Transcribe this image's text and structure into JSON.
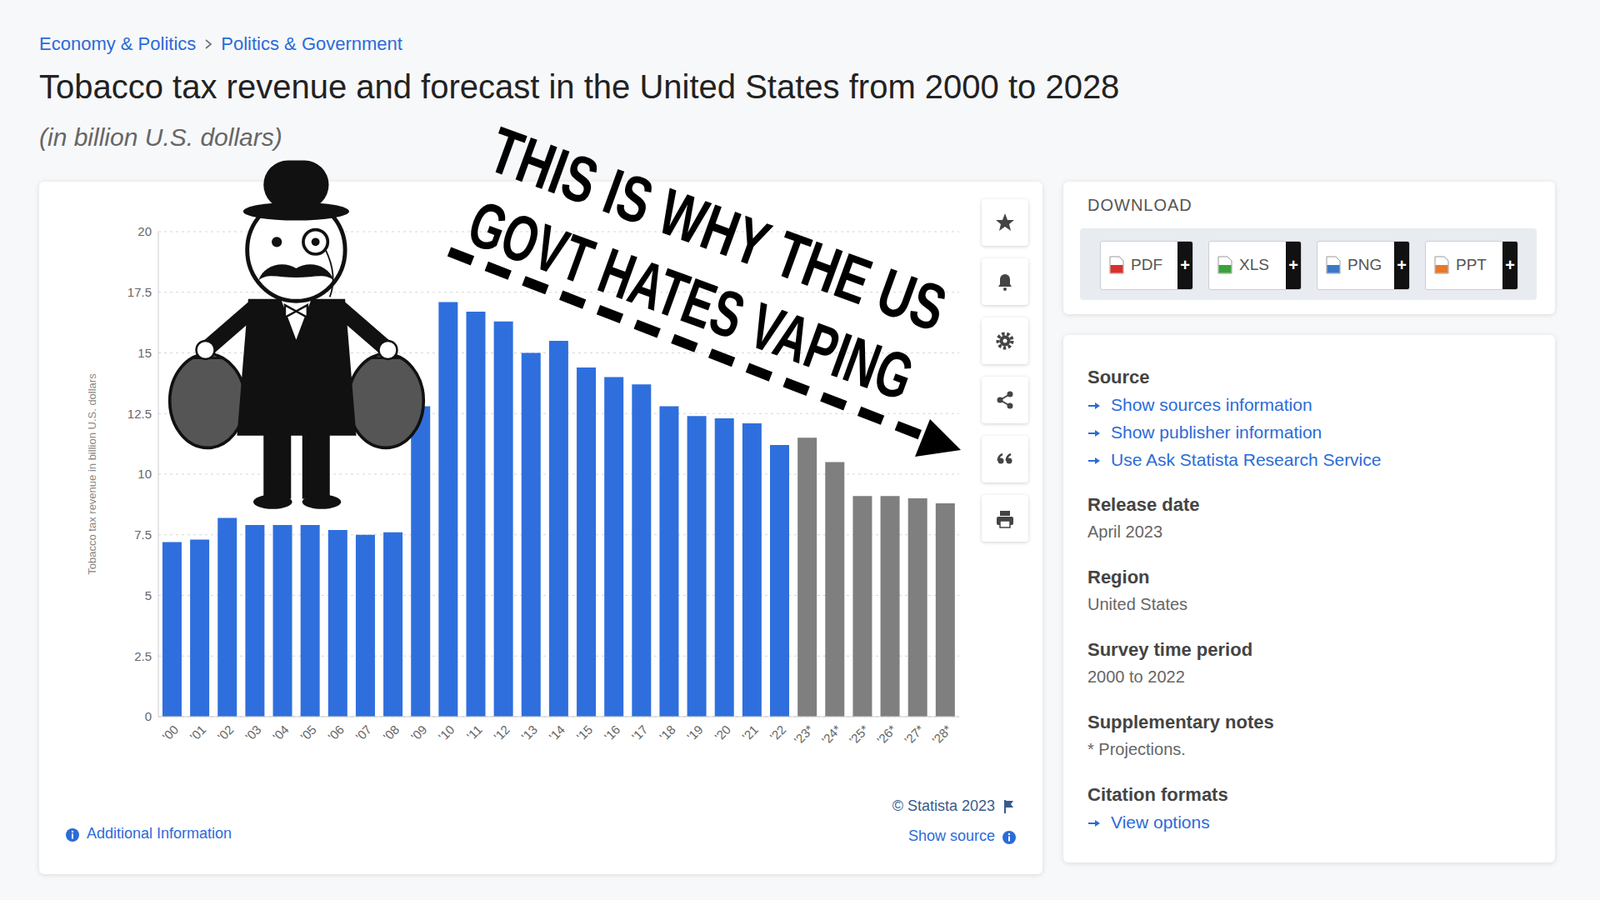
{
  "breadcrumb": [
    "Economy & Politics",
    "Politics & Government"
  ],
  "chart_data": {
    "type": "bar",
    "title": "Tobacco tax revenue and forecast in the United States from 2000 to 2028",
    "subtitle": "(in billion U.S. dollars)",
    "y_label": "Tobacco tax revenue in billion U.S. dollars",
    "categories": [
      "'00",
      "'01",
      "'02",
      "'03",
      "'04",
      "'05",
      "'06",
      "'07",
      "'08",
      "'09",
      "'10",
      "'11",
      "'12",
      "'13",
      "'14",
      "'15",
      "'16",
      "'17",
      "'18",
      "'19",
      "'20",
      "'21",
      "'22",
      "'23*",
      "'24*",
      "'25*",
      "'26*",
      "'27*",
      "'28*"
    ],
    "values": [
      7.2,
      7.3,
      8.2,
      7.9,
      7.9,
      7.9,
      7.7,
      7.5,
      7.6,
      12.8,
      17.1,
      16.7,
      16.3,
      15.0,
      15.5,
      14.4,
      14.0,
      13.7,
      12.8,
      12.4,
      12.3,
      12.1,
      11.2,
      11.5,
      10.5,
      9.1,
      9.1,
      9.0,
      8.8
    ],
    "colors": [
      "#2f6fdd",
      "#2f6fdd",
      "#2f6fdd",
      "#2f6fdd",
      "#2f6fdd",
      "#2f6fdd",
      "#2f6fdd",
      "#2f6fdd",
      "#2f6fdd",
      "#2f6fdd",
      "#2f6fdd",
      "#2f6fdd",
      "#2f6fdd",
      "#2f6fdd",
      "#2f6fdd",
      "#2f6fdd",
      "#2f6fdd",
      "#2f6fdd",
      "#2f6fdd",
      "#2f6fdd",
      "#2f6fdd",
      "#2f6fdd",
      "#2f6fdd",
      "#7f7f7f",
      "#7f7f7f",
      "#7f7f7f",
      "#7f7f7f",
      "#7f7f7f",
      "#7f7f7f"
    ],
    "ylim": [
      0,
      20
    ],
    "yticks": [
      0,
      2.5,
      5,
      7.5,
      10,
      12.5,
      15,
      17.5,
      20
    ],
    "grid": true,
    "annotation": [
      "THIS IS WHY THE US",
      "GOVT HATES VAPING"
    ]
  },
  "chart_footer": {
    "copyright": "© Statista 2023",
    "show_source": "Show source",
    "additional_information": "Additional Information"
  },
  "sidebar": {
    "download": {
      "heading": "DOWNLOAD",
      "formats": [
        "PDF",
        "XLS",
        "PNG",
        "PPT"
      ],
      "add": "+"
    },
    "details": [
      {
        "heading": "Source",
        "links": [
          "Show sources information",
          "Show publisher information",
          "Use Ask Statista Research Service"
        ]
      },
      {
        "heading": "Release date",
        "text": "April 2023"
      },
      {
        "heading": "Region",
        "text": "United States"
      },
      {
        "heading": "Survey time period",
        "text": "2000 to 2022"
      },
      {
        "heading": "Supplementary notes",
        "text": "* Projections."
      },
      {
        "heading": "Citation formats",
        "links": [
          "View options"
        ]
      }
    ]
  }
}
